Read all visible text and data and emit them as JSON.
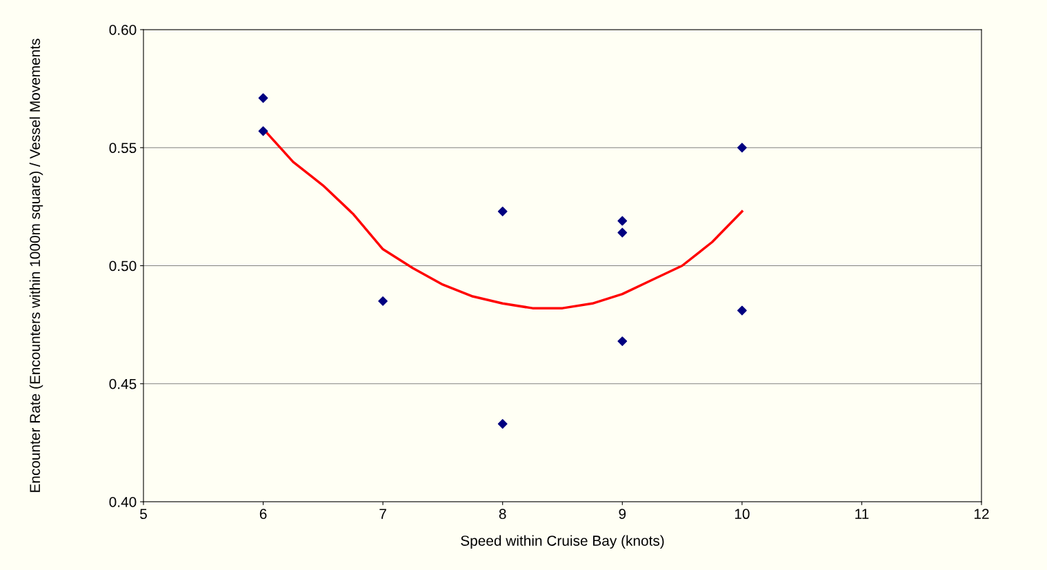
{
  "chart_data": {
    "type": "scatter",
    "xlabel": "Speed within Cruise Bay (knots)",
    "ylabel": "Encounter Rate (Encounters within 1000m square) / Vessel Movements",
    "series": [
      {
        "color": "#000080",
        "marker": "diamond",
        "x": [
          6,
          6,
          7,
          8,
          8,
          9,
          9,
          9,
          10,
          10
        ],
        "values": [
          0.571,
          0.557,
          0.485,
          0.523,
          0.433,
          0.519,
          0.514,
          0.468,
          0.55,
          0.481
        ]
      },
      {
        "type": "line",
        "color": "#ff0000",
        "marker": "none",
        "x": [
          6,
          6.25,
          6.5,
          6.75,
          7,
          7.25,
          7.5,
          7.75,
          8,
          8.25,
          8.5,
          8.75,
          9,
          9.25,
          9.5,
          9.75,
          10
        ],
        "values": [
          0.558,
          0.544,
          0.534,
          0.522,
          0.507,
          0.499,
          0.492,
          0.487,
          0.484,
          0.482,
          0.482,
          0.484,
          0.488,
          0.494,
          0.5,
          0.51,
          0.523
        ]
      }
    ],
    "xlim": [
      5,
      12
    ],
    "xticks": [
      5,
      6,
      7,
      8,
      9,
      10,
      11,
      12
    ],
    "ylim": [
      0.4,
      0.6
    ],
    "yticks": [
      {
        "value": 0.4,
        "label": "0.40"
      },
      {
        "value": 0.45,
        "label": "0.45"
      },
      {
        "value": 0.5,
        "label": "0.50"
      },
      {
        "value": 0.55,
        "label": "0.55"
      },
      {
        "value": 0.6,
        "label": "0.60"
      }
    ],
    "grid": "y",
    "legend": false
  }
}
